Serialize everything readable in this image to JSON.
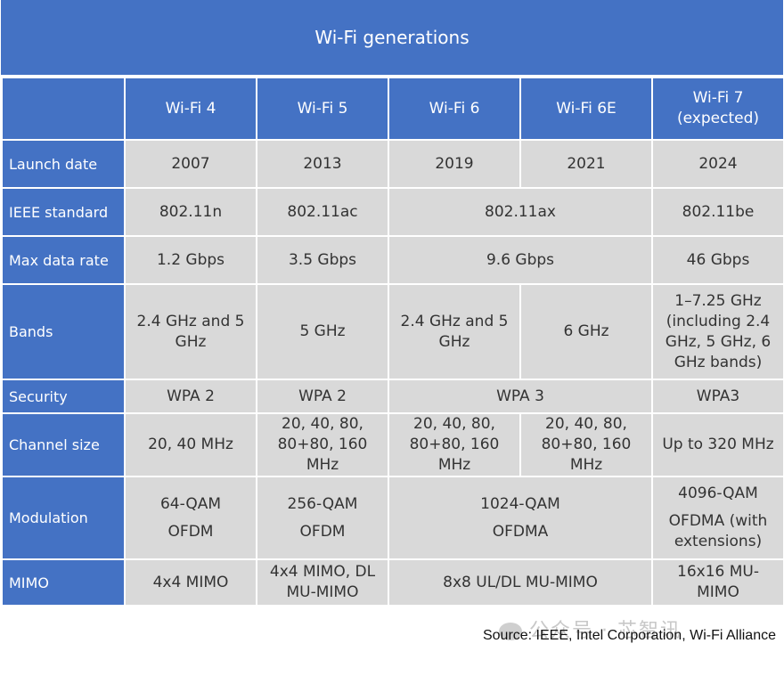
{
  "title": "Wi-Fi generations",
  "columns": [
    "Wi-Fi 4",
    "Wi-Fi 5",
    "Wi-Fi 6",
    "Wi-Fi 6E",
    "Wi-Fi 7"
  ],
  "col7_sub": "(expected)",
  "rows": {
    "launch": {
      "label": "Launch date",
      "c1": "2007",
      "c2": "2013",
      "c3": "2019",
      "c4": "2021",
      "c5": "2024"
    },
    "ieee": {
      "label": "IEEE standard",
      "c1": "802.11n",
      "c2": "802.11ac",
      "c34": "802.11ax",
      "c5": "802.11be"
    },
    "rate": {
      "label": "Max data rate",
      "c1": "1.2 Gbps",
      "c2": "3.5 Gbps",
      "c34": "9.6 Gbps",
      "c5": "46 Gbps"
    },
    "bands": {
      "label": "Bands",
      "c1": "2.4 GHz and 5 GHz",
      "c2": "5 GHz",
      "c3": "2.4 GHz and 5 GHz",
      "c4": "6 GHz",
      "c5": "1–7.25 GHz (including 2.4 GHz, 5 GHz, 6 GHz bands)"
    },
    "security": {
      "label": "Security",
      "c1": "WPA 2",
      "c2": "WPA 2",
      "c34": "WPA 3",
      "c5": "WPA3"
    },
    "channel": {
      "label": "Channel size",
      "c1": "20, 40 MHz",
      "c2": "20, 40, 80, 80+80, 160 MHz",
      "c3": "20, 40, 80, 80+80, 160 MHz",
      "c4": "20, 40, 80, 80+80, 160 MHz",
      "c5": "Up to 320 MHz"
    },
    "modulation": {
      "label": "Modulation",
      "c1a": "64-QAM",
      "c1b": "OFDM",
      "c2a": "256-QAM",
      "c2b": "OFDM",
      "c34a": "1024-QAM",
      "c34b": "OFDMA",
      "c5a": "4096-QAM",
      "c5b": "OFDMA (with extensions)"
    },
    "mimo": {
      "label": "MIMO",
      "c1": "4x4 MIMO",
      "c2": "4x4 MIMO, DL MU-MIMO",
      "c34": "8x8 UL/DL MU-MIMO",
      "c5": "16x16 MU-MIMO"
    }
  },
  "source": "Source: IEEE, Intel Corporation, Wi-Fi Alliance",
  "watermark": "公众号 · 芯智讯",
  "colors": {
    "header_blue": "#4472c4",
    "cell_gray": "#d9d9d9"
  }
}
